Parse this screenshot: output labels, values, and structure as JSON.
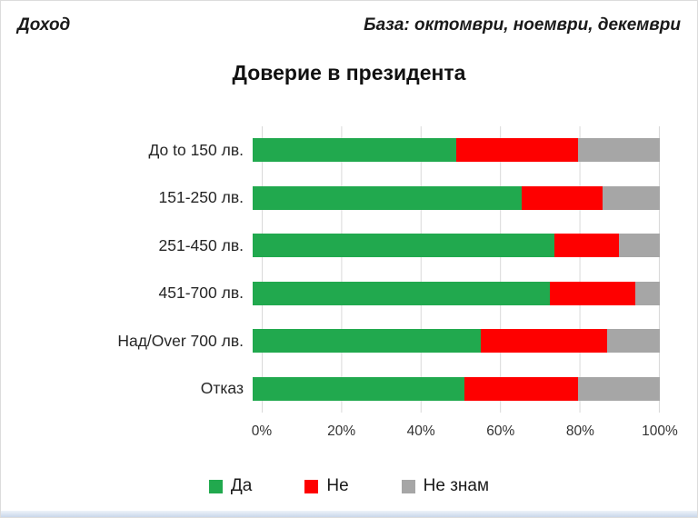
{
  "header": {
    "left": "Доход",
    "right": "База: октомври, ноември, декември"
  },
  "title": "Доверие в президента",
  "colors": {
    "yes_green": "#21a94e",
    "no_red": "#fe0000",
    "dontknow_gray": "#a6a6a6",
    "gridline": "#d9d9d9"
  },
  "chart_data": {
    "type": "bar",
    "orientation": "horizontal",
    "stacked": true,
    "title": "Доверие в президента",
    "categories": [
      "До to 150 лв.",
      "151-250 лв.",
      "251-450 лв.",
      "451-700 лв.",
      "Над/Over 700 лв.",
      "Отказ"
    ],
    "series": [
      {
        "name": "Да",
        "color": "#21a94e",
        "values": [
          50,
          66,
          74,
          73,
          56,
          52
        ]
      },
      {
        "name": "Не",
        "color": "#fe0000",
        "values": [
          30,
          20,
          16,
          21,
          31,
          28
        ]
      },
      {
        "name": "Не знам",
        "color": "#a6a6a6",
        "values": [
          20,
          14,
          10,
          6,
          13,
          20
        ]
      }
    ],
    "x_ticks": [
      "0%",
      "20%",
      "40%",
      "60%",
      "80%",
      "100%"
    ],
    "xlim": [
      0,
      100
    ],
    "grid": true,
    "legend_position": "bottom"
  }
}
